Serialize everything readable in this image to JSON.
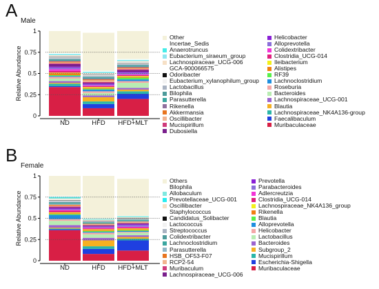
{
  "chart_data": [
    {
      "type": "bar",
      "stacked": true,
      "panel": "A",
      "subtitle": "Male",
      "ylabel": "Relative Abundance",
      "ylim": [
        0,
        1
      ],
      "yticks": [
        "0",
        "0.25",
        "0.5",
        "0.75",
        "1"
      ],
      "dotted_reference_lines": [
        0.25,
        0.5,
        0.75
      ],
      "categories": [
        "ND",
        "HFD",
        "HFD+MLT"
      ],
      "legend": [
        {
          "name": "Other",
          "color": "#f4f1da"
        },
        {
          "name": "Incertae_Sedis",
          "color": "#ffffff"
        },
        {
          "name": "Anaerotruncus",
          "color": "#46ece8"
        },
        {
          "name": "Eubacterium_siraeum_group",
          "color": "#8fe6f0"
        },
        {
          "name": "Lachnospiraceae_UCG-006",
          "color": "#f6e0c6"
        },
        {
          "name": "GCA-900066575",
          "color": "#ffffff"
        },
        {
          "name": "Odoribacter",
          "color": "#111111"
        },
        {
          "name": "Eubacterium_xylanophilum_group",
          "color": "#f2f2f2"
        },
        {
          "name": "Lactobacillus",
          "color": "#a9b3c2"
        },
        {
          "name": "Bilophila",
          "color": "#4c9a9a"
        },
        {
          "name": "Parasutterella",
          "color": "#3aa6a0"
        },
        {
          "name": "Rikenella",
          "color": "#8f6f9e"
        },
        {
          "name": "Akkermansia",
          "color": "#e8741e"
        },
        {
          "name": "Oscillibacter",
          "color": "#f2b38f"
        },
        {
          "name": "Mucispirillum",
          "color": "#cf3a7a"
        },
        {
          "name": "Dubosiella",
          "color": "#7a1f8c"
        },
        {
          "name": "Helicobacter",
          "color": "#8a1fd6"
        },
        {
          "name": "Alloprevotella",
          "color": "#8b6fd9"
        },
        {
          "name": "Colidextribacter",
          "color": "#f233d6"
        },
        {
          "name": "Clostridia_UCG-014",
          "color": "#e0207e"
        },
        {
          "name": "Ileibacterium",
          "color": "#f3f01a"
        },
        {
          "name": "Alistipes",
          "color": "#f07f12"
        },
        {
          "name": "RF39",
          "color": "#58f04a"
        },
        {
          "name": "Lachnoclostridium",
          "color": "#1f8fdf"
        },
        {
          "name": "Roseburia",
          "color": "#f4a7a7"
        },
        {
          "name": "Bacteroides",
          "color": "#b8ecb2"
        },
        {
          "name": "Lachnospiraceae_UCG-001",
          "color": "#9c63d0"
        },
        {
          "name": "Blautia",
          "color": "#f6b022"
        },
        {
          "name": "Lachnospiraceae_NK4A136-group",
          "color": "#2bb6a8"
        },
        {
          "name": "Faecalibaculum",
          "color": "#1f3fe0"
        },
        {
          "name": "Muribaculaceae",
          "color": "#d81f45"
        }
      ],
      "series": [
        {
          "name": "Muribaculaceae",
          "values": [
            0.34,
            0.09,
            0.2
          ]
        },
        {
          "name": "Faecalibaculum",
          "values": [
            0.01,
            0.05,
            0.06
          ]
        },
        {
          "name": "Lachnospiraceae_NK4A136-group",
          "values": [
            0.03,
            0.03,
            0.03
          ]
        },
        {
          "name": "Blautia",
          "values": [
            0.01,
            0.05,
            0.02
          ]
        },
        {
          "name": "Lachnospiraceae_UCG-001",
          "values": [
            0.02,
            0.02,
            0.02
          ]
        },
        {
          "name": "Bacteroides",
          "values": [
            0.03,
            0.03,
            0.06
          ]
        },
        {
          "name": "Roseburia",
          "values": [
            0.02,
            0.02,
            0.02
          ]
        },
        {
          "name": "Lachnoclostridium",
          "values": [
            0.01,
            0.02,
            0.02
          ]
        },
        {
          "name": "RF39",
          "values": [
            0.01,
            0.01,
            0.02
          ]
        },
        {
          "name": "Alistipes",
          "values": [
            0.02,
            0.01,
            0.01
          ]
        },
        {
          "name": "Ileibacterium",
          "values": [
            0.01,
            0.01,
            0.01
          ]
        },
        {
          "name": "Clostridia_UCG-014",
          "values": [
            0.02,
            0.01,
            0.01
          ]
        },
        {
          "name": "Colidextribacter",
          "values": [
            0.02,
            0.01,
            0.01
          ]
        },
        {
          "name": "Alloprevotella",
          "values": [
            0.02,
            0.01,
            0.02
          ]
        },
        {
          "name": "Helicobacter",
          "values": [
            0.01,
            0.01,
            0.01
          ]
        },
        {
          "name": "Dubosiella",
          "values": [
            0.03,
            0.01,
            0.02
          ]
        },
        {
          "name": "Mucispirillum",
          "values": [
            0.01,
            0.01,
            0.01
          ]
        },
        {
          "name": "Oscillibacter",
          "values": [
            0.01,
            0.02,
            0.01
          ]
        },
        {
          "name": "Akkermansia",
          "values": [
            0.01,
            0.01,
            0.01
          ]
        },
        {
          "name": "Rikenella",
          "values": [
            0.01,
            0.01,
            0.01
          ]
        },
        {
          "name": "Parasutterella",
          "values": [
            0.01,
            0.01,
            0.01
          ]
        },
        {
          "name": "Bilophila",
          "values": [
            0.01,
            0.01,
            0.01
          ]
        },
        {
          "name": "Lactobacillus",
          "values": [
            0.01,
            0.01,
            0.01
          ]
        },
        {
          "name": "Eubacterium_xylanophilum_group",
          "values": [
            0.01,
            0.01,
            0.01
          ]
        },
        {
          "name": "Odoribacter",
          "values": [
            0.005,
            0.005,
            0.005
          ]
        },
        {
          "name": "GCA-900066575",
          "values": [
            0.01,
            0.01,
            0.01
          ]
        },
        {
          "name": "Lachnospiraceae_UCG-006",
          "values": [
            0.01,
            0.01,
            0.01
          ]
        },
        {
          "name": "Eubacterium_siraeum_group",
          "values": [
            0.01,
            0.01,
            0.01
          ]
        },
        {
          "name": "Anaerotruncus",
          "values": [
            0.005,
            0.005,
            0.005
          ]
        },
        {
          "name": "Incertae_Sedis",
          "values": [
            0.01,
            0.01,
            0.01
          ]
        },
        {
          "name": "Other",
          "values": [
            0.28,
            0.45,
            0.35
          ]
        }
      ]
    },
    {
      "type": "bar",
      "stacked": true,
      "panel": "B",
      "subtitle": "Female",
      "ylabel": "Relative Abundance",
      "ylim": [
        0,
        1
      ],
      "yticks": [
        "0",
        "0.25",
        "0.5",
        "0.75",
        "1"
      ],
      "dotted_reference_lines": [
        0.25,
        0.5,
        0.75
      ],
      "categories": [
        "ND",
        "HFD",
        "HFD+MLT"
      ],
      "legend": [
        {
          "name": "Others",
          "color": "#f4f1da"
        },
        {
          "name": "Bilophila",
          "color": "#ffffff"
        },
        {
          "name": "Allobaculum",
          "color": "#7fe8e0"
        },
        {
          "name": "Prevotellaceae_UCG-001",
          "color": "#29ecef"
        },
        {
          "name": "Oscillibacter",
          "color": "#f6e0c6"
        },
        {
          "name": "Staphylococcus",
          "color": "#ffffff"
        },
        {
          "name": "Candidatus_Solibacter",
          "color": "#111111"
        },
        {
          "name": "Lactococcus",
          "color": "#f2f2f2"
        },
        {
          "name": "Streptococcus",
          "color": "#a9b3c2"
        },
        {
          "name": "Colidextribacter",
          "color": "#4c9a9a"
        },
        {
          "name": "Lachnoclostridium",
          "color": "#3aa6a0"
        },
        {
          "name": "Parasutterella",
          "color": "#8fb6c8"
        },
        {
          "name": "HSB_OF53-F07",
          "color": "#e8741e"
        },
        {
          "name": "RCP2-54",
          "color": "#f2b38f"
        },
        {
          "name": "Muribaculum",
          "color": "#cf3a7a"
        },
        {
          "name": "Lachnospiraceae_UCG-006",
          "color": "#7a1f8c"
        },
        {
          "name": "Prevotella",
          "color": "#8a1fd6"
        },
        {
          "name": "Parabacteroides",
          "color": "#8b6fd9"
        },
        {
          "name": "Adlercreutzia",
          "color": "#f233d6"
        },
        {
          "name": "Clostridia_UCG-014",
          "color": "#e0207e"
        },
        {
          "name": "Lachnospiraceae_NK4A136_group",
          "color": "#f3f01a"
        },
        {
          "name": "Rikenella",
          "color": "#f07f12"
        },
        {
          "name": "Blautia",
          "color": "#58f04a"
        },
        {
          "name": "Alloprevotella",
          "color": "#1f8fdf"
        },
        {
          "name": "Helicobacter",
          "color": "#f4a7a7"
        },
        {
          "name": "Lactobacillus",
          "color": "#b8ecb2"
        },
        {
          "name": "Bacteroides",
          "color": "#9c63d0"
        },
        {
          "name": "Subgroup_2",
          "color": "#f6b022"
        },
        {
          "name": "Mucispirillum",
          "color": "#2bb6a8"
        },
        {
          "name": "Escherichia-Shigella",
          "color": "#1f3fe0"
        },
        {
          "name": "Muribaculaceae",
          "color": "#d81f45"
        }
      ],
      "series": [
        {
          "name": "Muribaculaceae",
          "values": [
            0.36,
            0.08,
            0.12
          ]
        },
        {
          "name": "Escherichia-Shigella",
          "values": [
            0.01,
            0.06,
            0.12
          ]
        },
        {
          "name": "Mucispirillum",
          "values": [
            0.01,
            0.03,
            0.02
          ]
        },
        {
          "name": "Subgroup_2",
          "values": [
            0.01,
            0.07,
            0.02
          ]
        },
        {
          "name": "Bacteroides",
          "values": [
            0.03,
            0.03,
            0.02
          ]
        },
        {
          "name": "Lactobacillus",
          "values": [
            0.05,
            0.04,
            0.03
          ]
        },
        {
          "name": "Helicobacter",
          "values": [
            0.02,
            0.02,
            0.01
          ]
        },
        {
          "name": "Alloprevotella",
          "values": [
            0.05,
            0.01,
            0.01
          ]
        },
        {
          "name": "Blautia",
          "values": [
            0.01,
            0.01,
            0.01
          ]
        },
        {
          "name": "Rikenella",
          "values": [
            0.01,
            0.01,
            0.01
          ]
        },
        {
          "name": "Lachnospiraceae_NK4A136_group",
          "values": [
            0.01,
            0.01,
            0.01
          ]
        },
        {
          "name": "Clostridia_UCG-014",
          "values": [
            0.02,
            0.01,
            0.01
          ]
        },
        {
          "name": "Adlercreutzia",
          "values": [
            0.01,
            0.01,
            0.01
          ]
        },
        {
          "name": "Parabacteroides",
          "values": [
            0.01,
            0.01,
            0.02
          ]
        },
        {
          "name": "Prevotella",
          "values": [
            0.01,
            0.005,
            0.01
          ]
        },
        {
          "name": "Lachnospiraceae_UCG-006",
          "values": [
            0.01,
            0.01,
            0.01
          ]
        },
        {
          "name": "Muribaculum",
          "values": [
            0.01,
            0.005,
            0.005
          ]
        },
        {
          "name": "RCP2-54",
          "values": [
            0.01,
            0.01,
            0.01
          ]
        },
        {
          "name": "HSB_OF53-F07",
          "values": [
            0.01,
            0.005,
            0.005
          ]
        },
        {
          "name": "Parasutterella",
          "values": [
            0.01,
            0.005,
            0.01
          ]
        },
        {
          "name": "Lachnoclostridium",
          "values": [
            0.01,
            0.01,
            0.01
          ]
        },
        {
          "name": "Colidextribacter",
          "values": [
            0.01,
            0.005,
            0.005
          ]
        },
        {
          "name": "Streptococcus",
          "values": [
            0.01,
            0.005,
            0.005
          ]
        },
        {
          "name": "Lactococcus",
          "values": [
            0.01,
            0.005,
            0.005
          ]
        },
        {
          "name": "Candidatus_Solibacter",
          "values": [
            0.005,
            0.005,
            0.005
          ]
        },
        {
          "name": "Staphylococcus",
          "values": [
            0.01,
            0.005,
            0.005
          ]
        },
        {
          "name": "Oscillibacter",
          "values": [
            0.01,
            0.01,
            0.01
          ]
        },
        {
          "name": "Prevotellaceae_UCG-001",
          "values": [
            0.01,
            0.005,
            0.005
          ]
        },
        {
          "name": "Allobaculum",
          "values": [
            0.01,
            0.005,
            0.005
          ]
        },
        {
          "name": "Bilophila",
          "values": [
            0.01,
            0.005,
            0.005
          ]
        },
        {
          "name": "Others",
          "values": [
            0.245,
            0.5,
            0.435
          ]
        }
      ]
    }
  ],
  "figure": {
    "panels": [
      {
        "letter": "A"
      },
      {
        "letter": "B"
      }
    ]
  }
}
